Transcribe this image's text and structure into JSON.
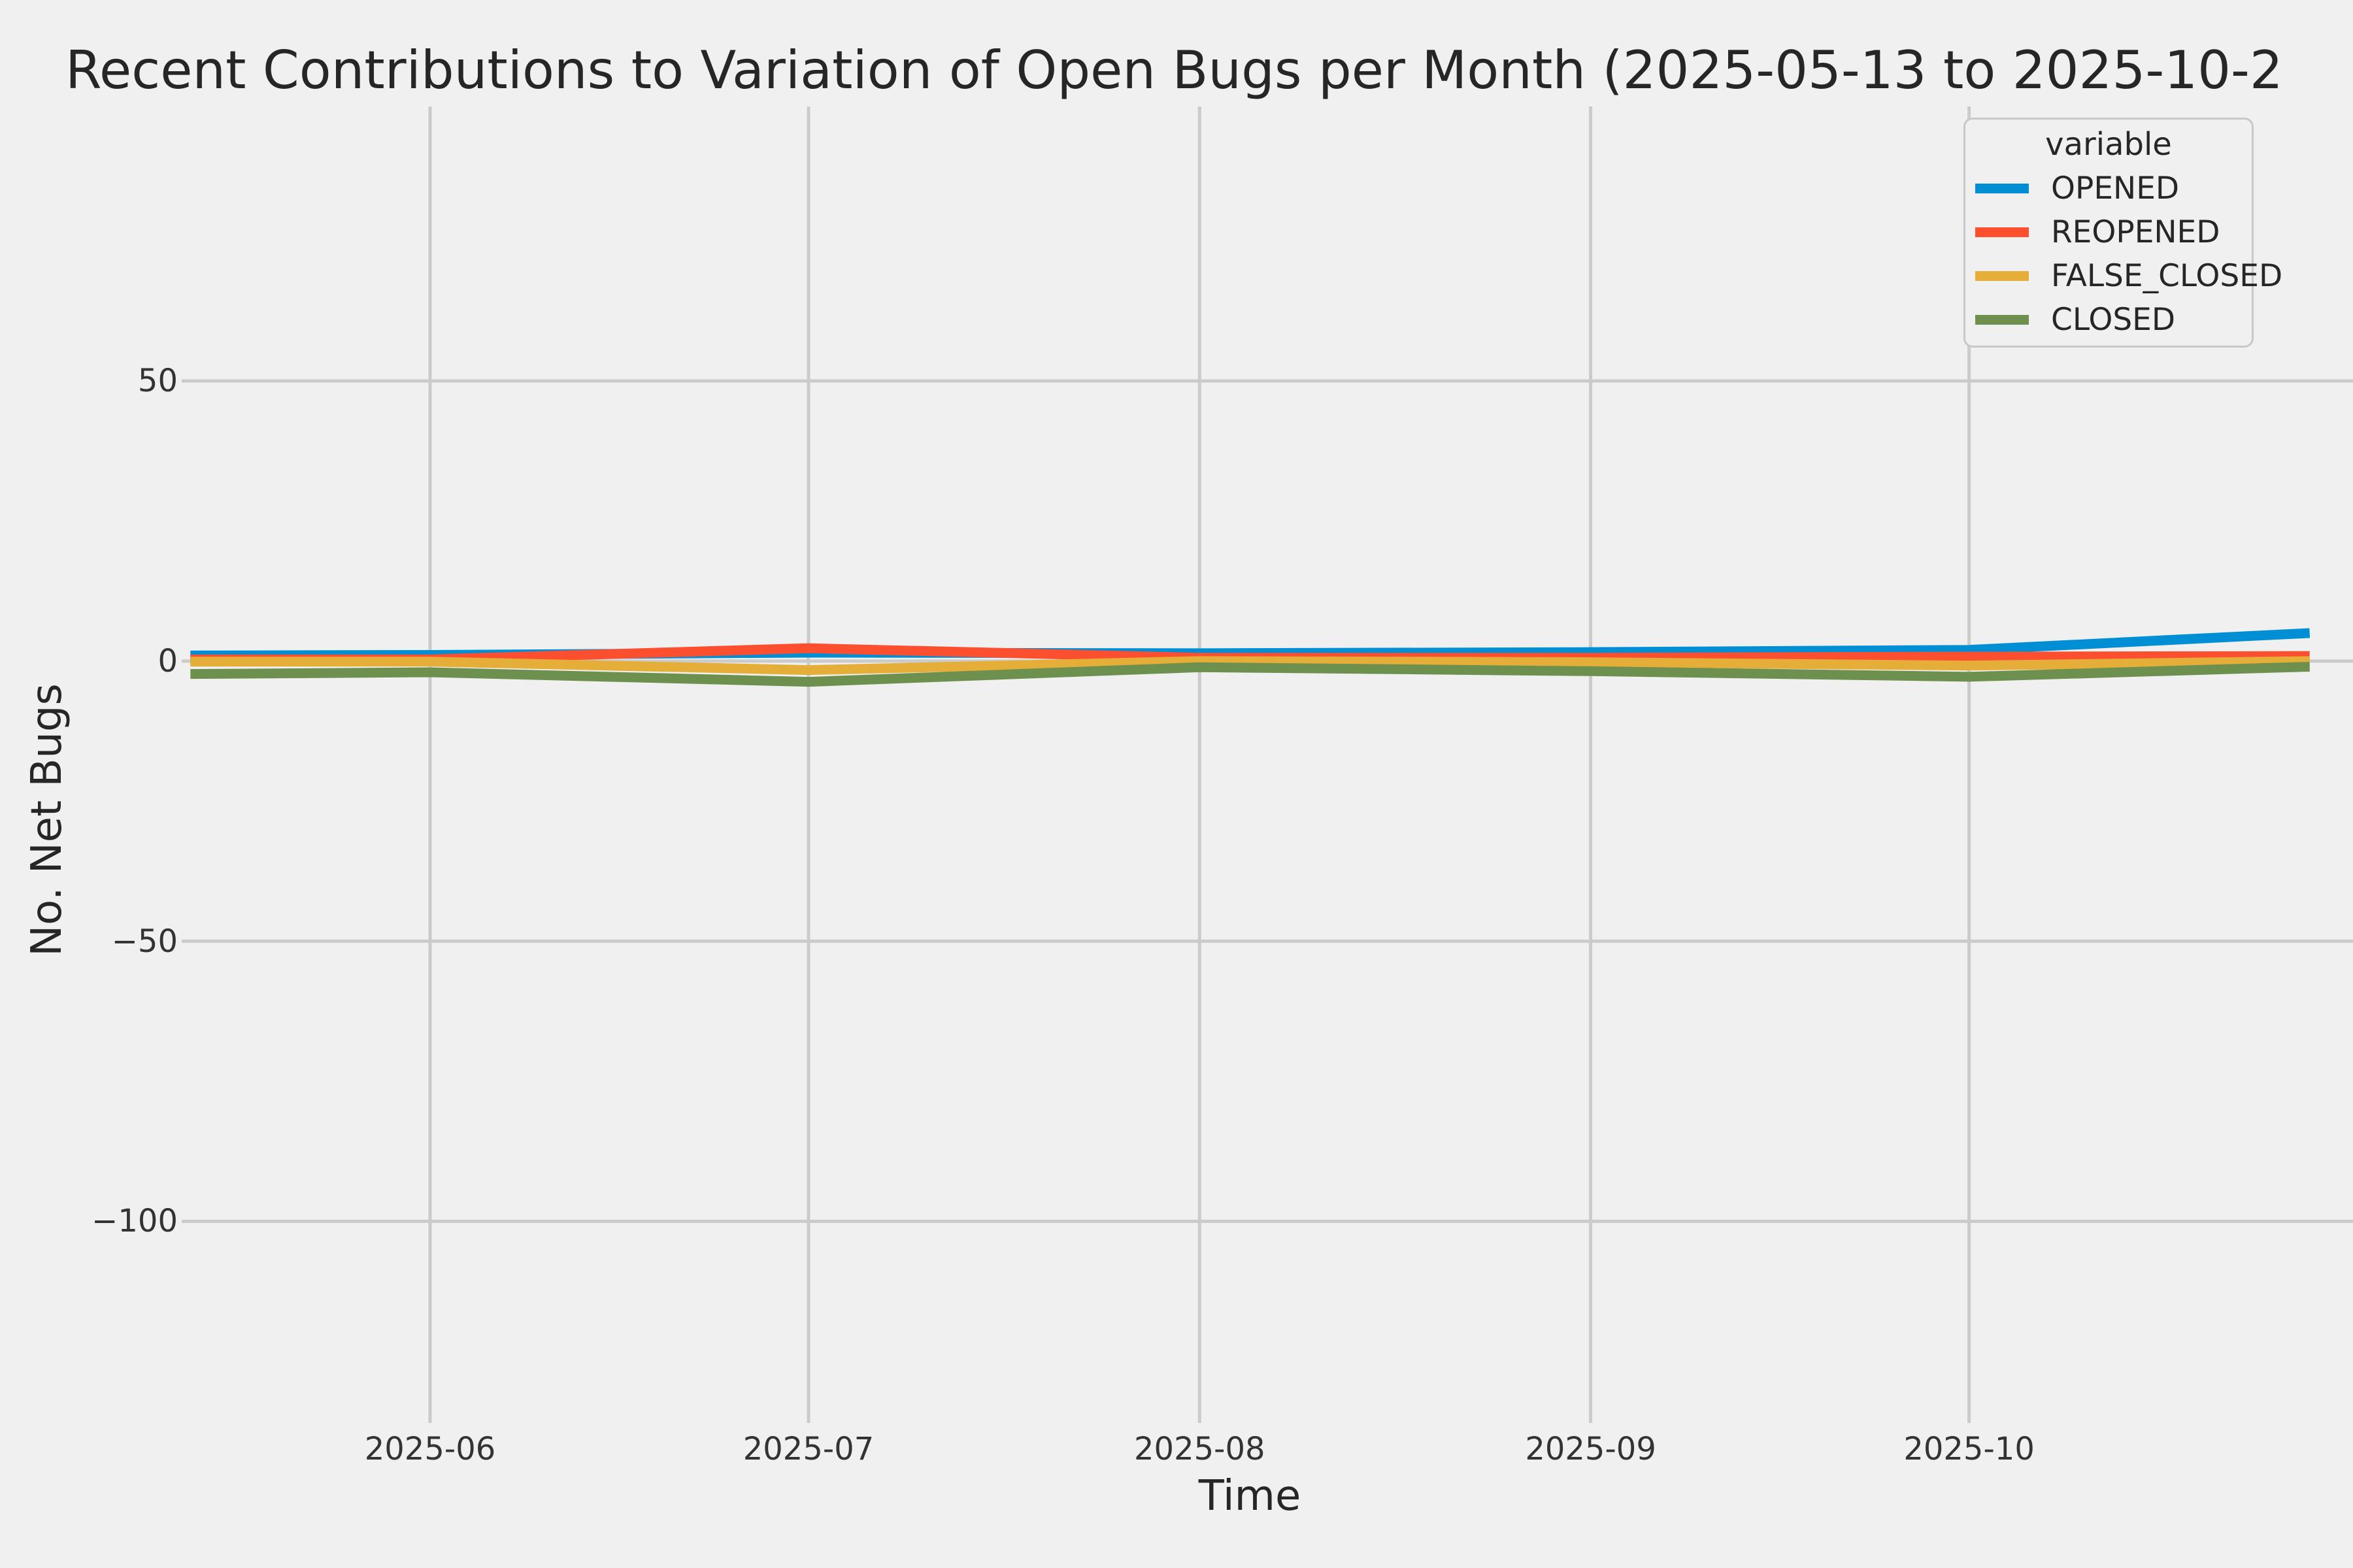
{
  "figure": {
    "background": "#f0f0f0",
    "grid_color": "#cbcbcb",
    "text_color": "#262626"
  },
  "title": "Recent Contributions to Variation of Open Bugs per Month (2025-05-13 to 2025-10-2",
  "chart_data": {
    "type": "line",
    "title": "Recent Contributions to Variation of Open Bugs per Month (2025-05-13 to 2025-10-2",
    "xlabel": "Time",
    "ylabel": "No. Net Bugs",
    "x": [
      "2025-05-13",
      "2025-06-01",
      "2025-07-01",
      "2025-08-01",
      "2025-09-01",
      "2025-10-01",
      "2025-10-28"
    ],
    "series": [
      {
        "name": "OPENED",
        "color": "#008fd5",
        "values": [
          1.0,
          1.1,
          1.5,
          1.4,
          1.6,
          2.0,
          5.0
        ]
      },
      {
        "name": "REOPENED",
        "color": "#fc4f30",
        "values": [
          0.3,
          0.3,
          2.3,
          0.6,
          0.6,
          0.8,
          0.9
        ]
      },
      {
        "name": "FALSE_CLOSED",
        "color": "#e5ae38",
        "values": [
          -0.1,
          -0.1,
          -1.6,
          0.0,
          -0.2,
          -0.8,
          0.0
        ]
      },
      {
        "name": "CLOSED",
        "color": "#6d904f",
        "values": [
          -2.3,
          -2.0,
          -3.7,
          -1.1,
          -1.8,
          -2.8,
          -1.0
        ]
      }
    ],
    "x_ticks": [
      {
        "label": "2025-06",
        "date": "2025-06-01"
      },
      {
        "label": "2025-07",
        "date": "2025-07-01"
      },
      {
        "label": "2025-08",
        "date": "2025-08-01"
      },
      {
        "label": "2025-09",
        "date": "2025-09-01"
      },
      {
        "label": "2025-10",
        "date": "2025-10-01"
      }
    ],
    "y_ticks": [
      {
        "label": "50",
        "value": 50
      },
      {
        "label": "0",
        "value": 0
      },
      {
        "label": "−50",
        "value": -50
      },
      {
        "label": "−100",
        "value": -100
      }
    ],
    "ylim": [
      -136,
      99
    ],
    "grid": true,
    "legend": {
      "title": "variable",
      "position": "upper right",
      "entries": [
        "OPENED",
        "REOPENED",
        "FALSE_CLOSED",
        "CLOSED"
      ]
    }
  }
}
